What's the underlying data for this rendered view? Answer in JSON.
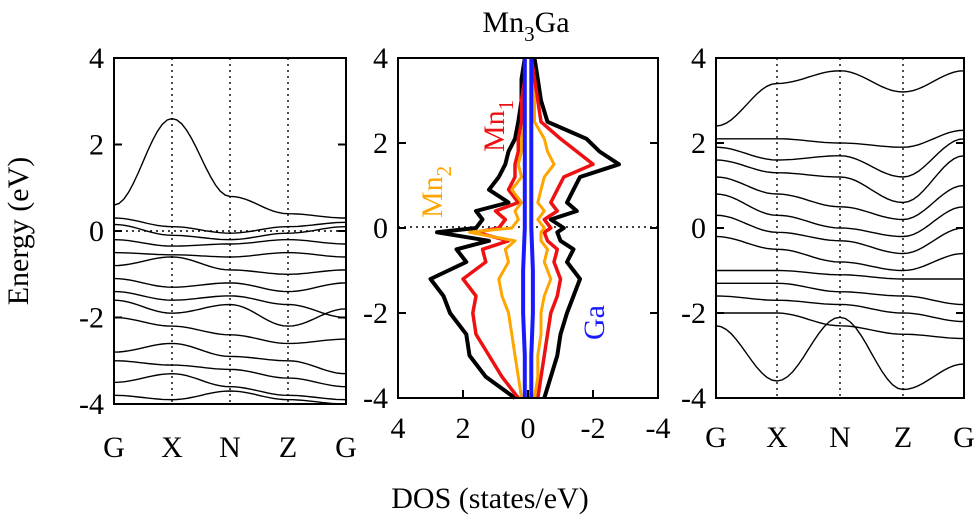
{
  "title": {
    "main": "Mn",
    "sub": "3",
    "tail": "Ga"
  },
  "xlabel": "DOS (states/eV)",
  "ylabel": "Energy (eV)",
  "y_ticks": [
    "4",
    "2",
    "0",
    "-2",
    "-4"
  ],
  "y_tick_values": [
    4,
    2,
    0,
    -2,
    -4
  ],
  "dos_x_ticks": [
    "4",
    "2",
    "0",
    "-2",
    "-4"
  ],
  "dos_x_tick_values": [
    4,
    2,
    0,
    -2,
    -4
  ],
  "k_points": [
    "G",
    "X",
    "N",
    "Z",
    "G"
  ],
  "k_point_positions": [
    0,
    1,
    2,
    3,
    4
  ],
  "labels": {
    "mn1": {
      "main": "Mn",
      "sub": "1"
    },
    "mn2": {
      "main": "Mn",
      "sub": "2"
    },
    "ga": "Ga"
  },
  "colors": {
    "total": "#000000",
    "mn1": "#ee1111",
    "mn2": "#ffa500",
    "ga": "#1a1aff"
  },
  "chart_data": [
    {
      "type": "line",
      "name": "band-structure-left",
      "xlabel": "",
      "ylabel": "Energy (eV)",
      "ylim": [
        -4,
        4
      ],
      "k_path": [
        "G",
        "X",
        "N",
        "Z",
        "G"
      ],
      "energy_at_k": [
        [
          0.3,
          0.1,
          -0.05,
          0.1,
          0.2
        ],
        [
          0.15,
          -0.1,
          -0.2,
          -0.05,
          0.1
        ],
        [
          -0.2,
          -0.35,
          -0.3,
          -0.2,
          -0.3
        ],
        [
          -0.5,
          -0.55,
          -0.6,
          -0.5,
          -0.6
        ],
        [
          -0.8,
          -0.6,
          -0.9,
          -1.0,
          -0.9
        ],
        [
          -1.1,
          -1.3,
          -1.2,
          -1.4,
          -1.2
        ],
        [
          -1.4,
          -1.6,
          -1.5,
          -1.7,
          -2.0
        ],
        [
          -1.6,
          -1.9,
          -1.7,
          -2.2,
          -1.8
        ],
        [
          -2.0,
          -2.2,
          -2.4,
          -2.6,
          -2.5
        ],
        [
          -2.8,
          -2.6,
          -2.9,
          -3.0,
          -3.3
        ],
        [
          -3.0,
          -3.1,
          -3.2,
          -3.4,
          -3.6
        ],
        [
          -3.5,
          -3.3,
          -3.6,
          -3.8,
          -3.9
        ],
        [
          -3.8,
          -3.9,
          -3.7,
          -3.9,
          -4.0
        ],
        [
          0.6,
          2.6,
          0.8,
          0.4,
          0.3
        ]
      ]
    },
    {
      "type": "line",
      "name": "dos",
      "title": "Mn3Ga",
      "xlabel": "DOS (states/eV)",
      "ylabel": "",
      "xlim": [
        4,
        -4
      ],
      "ylim": [
        -4,
        4
      ],
      "series": [
        {
          "name": "Total",
          "energy": [
            -4.0,
            -3.5,
            -3.0,
            -2.5,
            -2.0,
            -1.6,
            -1.2,
            -0.8,
            -0.5,
            -0.3,
            -0.1,
            0.0,
            0.2,
            0.4,
            0.6,
            0.9,
            1.2,
            1.5,
            1.8,
            2.1,
            2.5,
            3.0,
            3.5,
            4.0
          ],
          "up": [
            0.4,
            1.3,
            1.8,
            1.9,
            2.4,
            2.6,
            3.0,
            1.9,
            2.2,
            1.2,
            2.8,
            1.6,
            1.4,
            1.6,
            0.6,
            1.2,
            0.9,
            0.7,
            0.6,
            0.4,
            0.3,
            0.2,
            0.2,
            0.1
          ],
          "down": [
            -0.5,
            -0.7,
            -0.9,
            -1.0,
            -1.2,
            -1.4,
            -1.6,
            -1.2,
            -1.4,
            -1.0,
            -0.9,
            -1.1,
            -0.7,
            -1.5,
            -1.2,
            -1.4,
            -1.6,
            -2.8,
            -2.2,
            -1.8,
            -0.6,
            -0.4,
            -0.3,
            -0.2
          ]
        },
        {
          "name": "Mn1",
          "energy": [
            -4.0,
            -3.5,
            -3.0,
            -2.5,
            -2.0,
            -1.6,
            -1.2,
            -0.8,
            -0.5,
            -0.3,
            -0.1,
            0.0,
            0.2,
            0.4,
            0.6,
            0.9,
            1.2,
            1.5,
            1.8,
            2.1,
            2.5,
            3.0,
            3.5,
            4.0
          ],
          "up": [
            0.3,
            0.8,
            1.2,
            1.6,
            1.7,
            1.6,
            2.0,
            1.3,
            1.4,
            0.6,
            1.6,
            0.9,
            0.7,
            1.0,
            0.3,
            0.6,
            0.4,
            0.4,
            0.3,
            0.3,
            0.2,
            0.2,
            0.1,
            0.1
          ],
          "down": [
            -0.3,
            -0.4,
            -0.5,
            -0.6,
            -0.7,
            -0.9,
            -1.0,
            -0.8,
            -0.9,
            -0.6,
            -0.5,
            -0.7,
            -0.5,
            -0.9,
            -0.7,
            -0.9,
            -1.1,
            -2.0,
            -1.5,
            -1.0,
            -0.4,
            -0.3,
            -0.2,
            -0.1
          ]
        },
        {
          "name": "Mn2",
          "energy": [
            -4.0,
            -3.5,
            -3.0,
            -2.5,
            -2.0,
            -1.6,
            -1.2,
            -0.8,
            -0.5,
            -0.3,
            -0.1,
            0.0,
            0.2,
            0.4,
            0.6,
            0.9,
            1.2,
            1.5,
            1.8,
            2.1,
            2.5,
            3.0,
            3.5,
            4.0
          ],
          "up": [
            0.2,
            0.3,
            0.4,
            0.5,
            0.6,
            0.8,
            0.9,
            0.6,
            0.7,
            0.4,
            1.8,
            0.5,
            0.3,
            0.4,
            0.2,
            0.5,
            0.2,
            0.3,
            0.2,
            0.2,
            0.1,
            0.1,
            0.1,
            0.1
          ],
          "down": [
            -0.2,
            -0.3,
            -0.3,
            -0.4,
            -0.4,
            -0.5,
            -0.7,
            -0.5,
            -0.6,
            -0.4,
            -0.4,
            -0.5,
            -0.3,
            -0.5,
            -0.3,
            -0.4,
            -0.5,
            -0.8,
            -0.6,
            -0.5,
            -0.2,
            -0.2,
            -0.1,
            -0.1
          ]
        },
        {
          "name": "Ga",
          "energy": [
            -4.0,
            -3.0,
            -2.0,
            -1.0,
            0.0,
            1.0,
            2.0,
            3.0,
            4.0
          ],
          "up": [
            0.1,
            0.1,
            0.15,
            0.15,
            0.1,
            0.1,
            0.1,
            0.1,
            0.1
          ],
          "down": [
            -0.1,
            -0.1,
            -0.15,
            -0.15,
            -0.1,
            -0.1,
            -0.1,
            -0.1,
            -0.1
          ]
        }
      ]
    },
    {
      "type": "line",
      "name": "band-structure-right",
      "xlabel": "",
      "ylabel": "",
      "ylim": [
        -4,
        4
      ],
      "k_path": [
        "G",
        "X",
        "N",
        "Z",
        "G"
      ],
      "energy_at_k": [
        [
          2.1,
          2.1,
          2.0,
          1.9,
          2.3
        ],
        [
          1.9,
          1.6,
          1.7,
          1.2,
          2.1
        ],
        [
          1.6,
          1.3,
          1.2,
          0.6,
          1.7
        ],
        [
          1.2,
          0.8,
          0.5,
          0.2,
          1.0
        ],
        [
          0.8,
          0.3,
          0.0,
          -0.2,
          0.5
        ],
        [
          0.3,
          -0.1,
          -0.3,
          -0.6,
          0.0
        ],
        [
          -0.2,
          -0.5,
          -0.8,
          -1.0,
          -0.6
        ],
        [
          -1.0,
          -1.0,
          -1.1,
          -1.2,
          -1.2
        ],
        [
          -1.3,
          -1.3,
          -1.5,
          -1.6,
          -1.8
        ],
        [
          -1.6,
          -1.7,
          -1.8,
          -2.0,
          -2.2
        ],
        [
          -2.0,
          -2.0,
          -2.3,
          -2.5,
          -2.6
        ],
        [
          -2.3,
          -3.6,
          -2.1,
          -3.8,
          -3.2
        ],
        [
          2.4,
          3.4,
          3.7,
          3.2,
          3.7
        ]
      ]
    }
  ]
}
